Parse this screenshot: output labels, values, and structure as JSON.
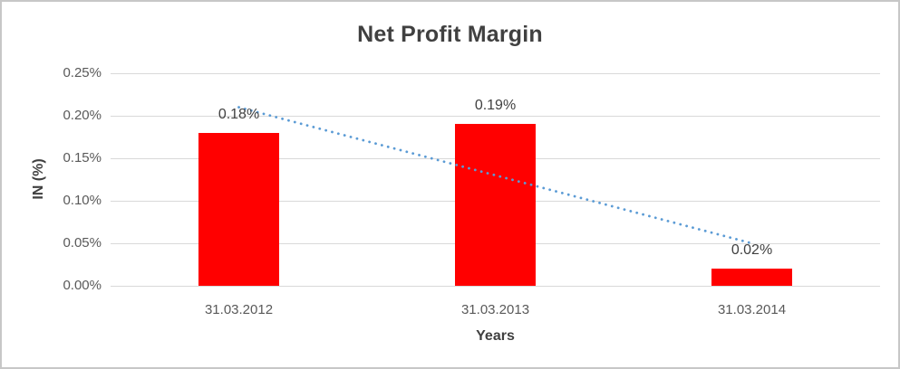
{
  "chart_data": {
    "type": "bar",
    "title": "Net Profit Margin",
    "xlabel": "Years",
    "ylabel": "IN (%)",
    "categories": [
      "31.03.2012",
      "31.03.2013",
      "31.03.2014"
    ],
    "values": [
      0.18,
      0.19,
      0.02
    ],
    "data_labels": [
      "0.18%",
      "0.19%",
      "0.02%"
    ],
    "ytick_labels": [
      "0.25%",
      "0.20%",
      "0.15%",
      "0.10%",
      "0.05%",
      "0.00%"
    ],
    "ylim": [
      0,
      0.25
    ],
    "grid": true,
    "legend": "none",
    "bar_color": "#ff0000",
    "trendline": {
      "type": "linear",
      "style": "dotted",
      "color": "#5b9bd5",
      "start_value": 0.21,
      "end_value": 0.05
    },
    "colors": {
      "title_text": "#404040",
      "tick_text": "#595959",
      "gridline": "#d9d9d9",
      "frame_border": "#c7c7c7",
      "background": "#ffffff"
    }
  }
}
